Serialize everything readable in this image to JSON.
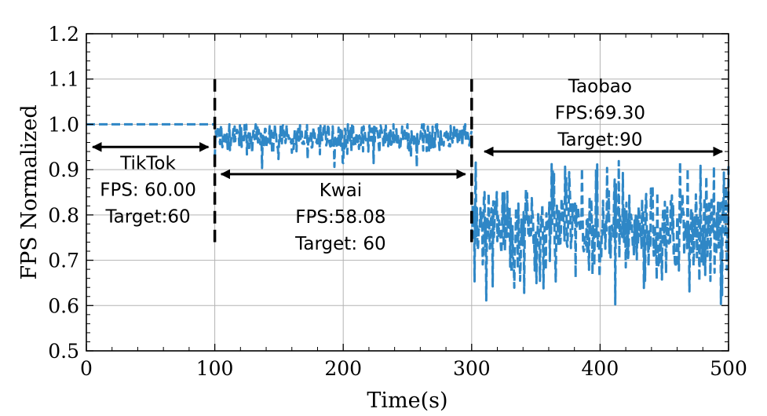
{
  "chart_data": {
    "type": "line",
    "title": "",
    "xlabel": "Time(s)",
    "ylabel": "FPS Normalized",
    "xlim": [
      0,
      500
    ],
    "ylim": [
      0.5,
      1.2
    ],
    "xticks": [
      0,
      100,
      200,
      300,
      400,
      500
    ],
    "xtick_labels": [
      "0",
      "100",
      "200",
      "300",
      "400",
      "500"
    ],
    "yticks": [
      0.5,
      0.6,
      0.7,
      0.8,
      0.9,
      1.0,
      1.1,
      1.2
    ],
    "ytick_labels": [
      "0.5",
      "0.6",
      "0.7",
      "0.8",
      "0.9",
      "1.0",
      "1.1",
      "1.2"
    ],
    "grid": true,
    "line_color": "#2f87c6",
    "series": [
      {
        "name": "FPS Normalized",
        "segments": [
          {
            "app": "TikTok",
            "x_range": [
              0,
              100
            ],
            "mean": 1.0,
            "min": 1.0,
            "max": 1.0
          },
          {
            "app": "Kwai",
            "x_range": [
              100,
              300
            ],
            "mean": 0.97,
            "min": 0.9,
            "max": 1.0
          },
          {
            "app": "Taobao",
            "x_range": [
              300,
              500
            ],
            "mean": 0.77,
            "min": 0.6,
            "max": 0.92
          }
        ]
      }
    ],
    "switch_lines": [
      {
        "x": 100,
        "y_range": [
          0.74,
          1.1
        ]
      },
      {
        "x": 300,
        "y_range": [
          0.74,
          1.1
        ]
      }
    ],
    "spans": [
      {
        "x_range": [
          5,
          95
        ],
        "y": 0.95
      },
      {
        "x_range": [
          105,
          295
        ],
        "y": 0.89
      },
      {
        "x_range": [
          310,
          495
        ],
        "y": 0.94
      }
    ],
    "annotations": [
      {
        "lines": [
          "TikTok",
          "FPS: 60.00",
          "Target:60"
        ],
        "x": 48,
        "y_top": 0.915
      },
      {
        "lines": [
          "Kwai",
          "FPS:58.08",
          "Target: 60"
        ],
        "x": 198,
        "y_top": 0.855
      },
      {
        "lines": [
          "Taobao",
          "FPS:69.30",
          "Target:90"
        ],
        "x": 400,
        "y_top": 1.085
      }
    ]
  }
}
